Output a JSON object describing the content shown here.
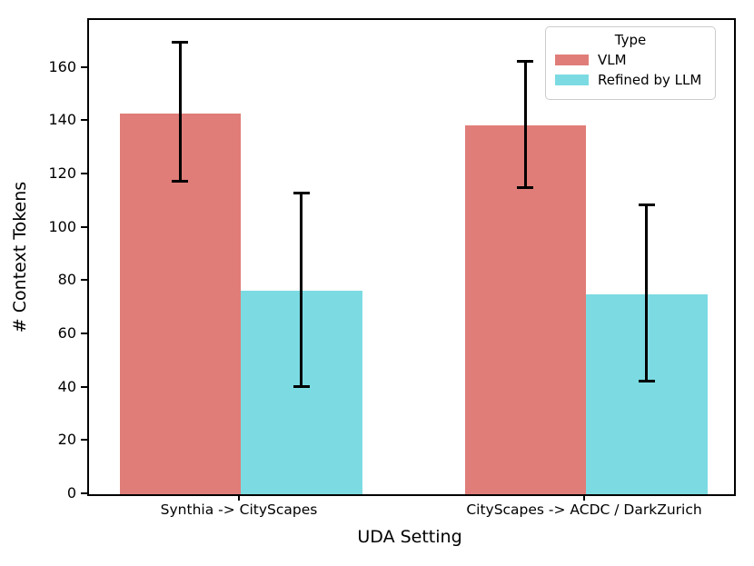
{
  "chart_data": {
    "type": "bar",
    "title": "",
    "xlabel": "UDA Setting",
    "ylabel": "# Context Tokens",
    "categories": [
      "Synthia -> CityScapes",
      "CityScapes -> ACDC / DarkZurich"
    ],
    "series": [
      {
        "name": "VLM",
        "color": "#e07d78",
        "values": [
          143,
          138.5
        ],
        "error_low": [
          117,
          114.5
        ],
        "error_high": [
          170,
          163
        ]
      },
      {
        "name": "Refined by LLM",
        "color": "#7cdbe2",
        "values": [
          76.5,
          75
        ],
        "error_low": [
          40,
          42
        ],
        "error_high": [
          113.5,
          109
        ]
      }
    ],
    "yticks": [
      0,
      20,
      40,
      60,
      80,
      100,
      120,
      140,
      160
    ],
    "ylim": [
      0,
      178
    ],
    "grid": false,
    "error_bar_color": "#000000",
    "legend": {
      "title": "Type",
      "position": "upper right"
    }
  }
}
